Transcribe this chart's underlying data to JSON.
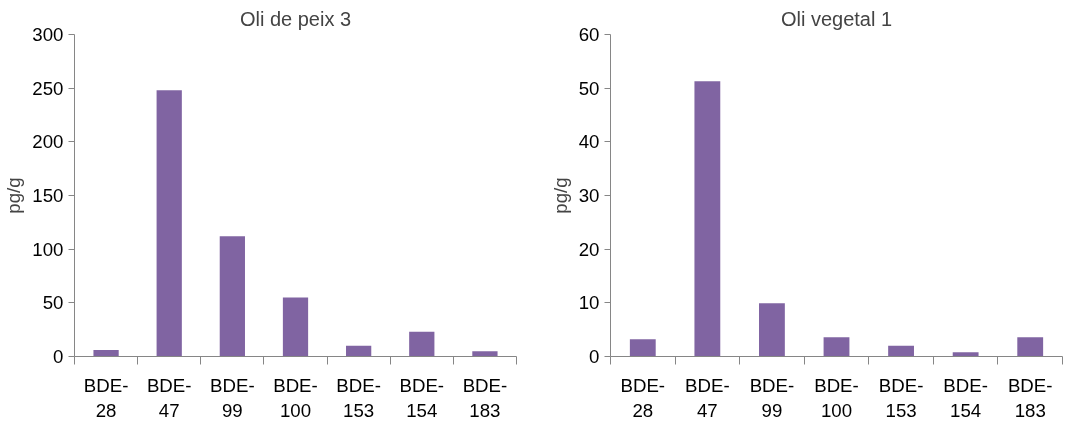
{
  "chart_data": [
    {
      "type": "bar",
      "title": "Oli de peix 3",
      "ylabel": "pg/g",
      "categories": [
        "BDE-28",
        "BDE-47",
        "BDE-99",
        "BDE-100",
        "BDE-153",
        "BDE-154",
        "BDE-183"
      ],
      "values": [
        6,
        248,
        112,
        55,
        10,
        23,
        5
      ],
      "color": "#8064a2",
      "ylim": [
        0,
        300
      ],
      "yticks": [
        0,
        50,
        100,
        150,
        200,
        250,
        300
      ],
      "grid": false
    },
    {
      "type": "bar",
      "title": "Oli vegetal 1",
      "ylabel": "pg/g",
      "categories": [
        "BDE-28",
        "BDE-47",
        "BDE-99",
        "BDE-100",
        "BDE-153",
        "BDE-154",
        "BDE-183"
      ],
      "values": [
        3.2,
        51.3,
        9.9,
        3.6,
        2.0,
        0.8,
        3.6
      ],
      "color": "#8064a2",
      "ylim": [
        0,
        60
      ],
      "yticks": [
        0,
        10,
        20,
        30,
        40,
        50,
        60
      ],
      "grid": false
    }
  ]
}
